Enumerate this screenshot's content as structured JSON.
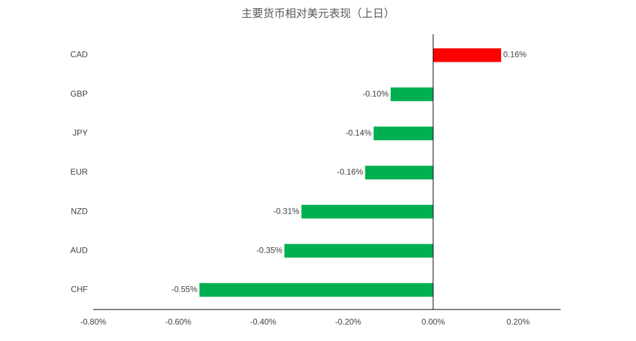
{
  "chart_data": {
    "type": "hbar",
    "title": "主要货币相对美元表现（上日）",
    "categories": [
      "CAD",
      "GBP",
      "JPY",
      "EUR",
      "NZD",
      "AUD",
      "CHF"
    ],
    "values": [
      0.16,
      -0.1,
      -0.14,
      -0.16,
      -0.31,
      -0.35,
      -0.55
    ],
    "value_labels": [
      "0.16%",
      "-0.10%",
      "-0.14%",
      "-0.16%",
      "-0.31%",
      "-0.35%",
      "-0.55%"
    ],
    "positive_color": "#ff0000",
    "negative_color": "#00b050",
    "xlim": [
      -0.8,
      0.3
    ],
    "xticks": [
      {
        "value": -0.8,
        "label": "-0.80%"
      },
      {
        "value": -0.6,
        "label": "-0.60%"
      },
      {
        "value": -0.4,
        "label": "-0.40%"
      },
      {
        "value": -0.2,
        "label": "-0.20%"
      },
      {
        "value": 0,
        "label": "0.00%"
      },
      {
        "value": 0.2,
        "label": "0.20%"
      }
    ],
    "grid": false
  }
}
